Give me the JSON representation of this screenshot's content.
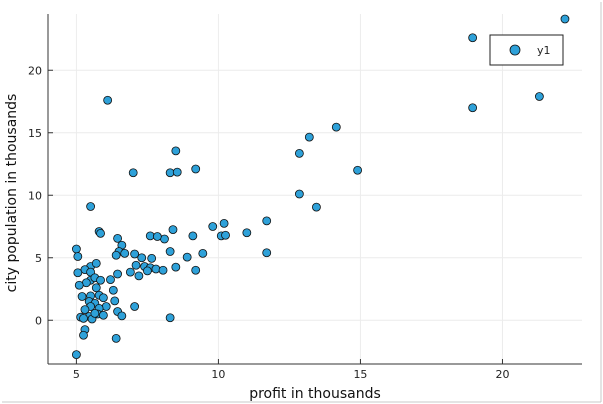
{
  "chart_data": {
    "type": "scatter",
    "xlabel": "profit in thousands",
    "ylabel": "city population in thousands",
    "xlim": [
      4.0,
      22.8
    ],
    "ylim": [
      -3.5,
      24.5
    ],
    "xticks": [
      5,
      10,
      15,
      20
    ],
    "yticks": [
      0,
      5,
      10,
      15,
      20
    ],
    "grid": true,
    "legend_position": "top-right",
    "series": [
      {
        "name": "y1",
        "color": "#2ea1d9",
        "points": [
          [
            22.2,
            24.1
          ],
          [
            18.95,
            22.6
          ],
          [
            20.3,
            21.0
          ],
          [
            18.95,
            17.0
          ],
          [
            21.3,
            17.9
          ],
          [
            6.1,
            17.6
          ],
          [
            14.15,
            15.45
          ],
          [
            13.2,
            14.65
          ],
          [
            12.85,
            13.35
          ],
          [
            8.5,
            13.55
          ],
          [
            7.0,
            11.8
          ],
          [
            8.3,
            11.8
          ],
          [
            8.55,
            11.85
          ],
          [
            9.2,
            12.1
          ],
          [
            14.9,
            12.0
          ],
          [
            12.85,
            10.1
          ],
          [
            13.45,
            9.05
          ],
          [
            5.5,
            9.1
          ],
          [
            11.7,
            7.95
          ],
          [
            10.2,
            7.75
          ],
          [
            11.0,
            7.0
          ],
          [
            9.8,
            7.5
          ],
          [
            10.1,
            6.75
          ],
          [
            10.25,
            6.8
          ],
          [
            8.4,
            7.25
          ],
          [
            8.1,
            6.5
          ],
          [
            7.6,
            6.75
          ],
          [
            7.85,
            6.7
          ],
          [
            5.8,
            7.1
          ],
          [
            5.85,
            6.95
          ],
          [
            6.45,
            6.55
          ],
          [
            6.6,
            6.0
          ],
          [
            8.3,
            5.5
          ],
          [
            9.1,
            6.75
          ],
          [
            9.45,
            5.35
          ],
          [
            8.9,
            5.05
          ],
          [
            8.5,
            4.25
          ],
          [
            9.2,
            4.0
          ],
          [
            7.05,
            5.3
          ],
          [
            7.3,
            5.0
          ],
          [
            7.65,
            4.95
          ],
          [
            7.1,
            4.4
          ],
          [
            7.4,
            4.3
          ],
          [
            7.6,
            4.2
          ],
          [
            7.8,
            4.1
          ],
          [
            8.05,
            4.0
          ],
          [
            7.5,
            3.95
          ],
          [
            7.2,
            3.55
          ],
          [
            6.9,
            3.85
          ],
          [
            6.45,
            3.7
          ],
          [
            6.5,
            5.5
          ],
          [
            6.4,
            5.2
          ],
          [
            6.7,
            5.35
          ],
          [
            5.0,
            5.7
          ],
          [
            5.05,
            5.1
          ],
          [
            5.5,
            4.3
          ],
          [
            5.7,
            4.55
          ],
          [
            5.3,
            4.05
          ],
          [
            5.5,
            3.85
          ],
          [
            5.05,
            3.8
          ],
          [
            5.5,
            3.2
          ],
          [
            5.65,
            3.4
          ],
          [
            5.85,
            3.2
          ],
          [
            6.2,
            3.25
          ],
          [
            5.35,
            3.0
          ],
          [
            5.1,
            2.8
          ],
          [
            5.7,
            2.6
          ],
          [
            6.3,
            2.4
          ],
          [
            5.8,
            2.0
          ],
          [
            5.5,
            1.95
          ],
          [
            5.2,
            1.9
          ],
          [
            5.95,
            1.8
          ],
          [
            5.45,
            1.5
          ],
          [
            5.65,
            1.35
          ],
          [
            6.05,
            1.1
          ],
          [
            6.35,
            1.55
          ],
          [
            5.8,
            0.95
          ],
          [
            5.5,
            1.1
          ],
          [
            5.3,
            0.85
          ],
          [
            5.75,
            0.5
          ],
          [
            5.95,
            0.4
          ],
          [
            5.45,
            0.3
          ],
          [
            5.15,
            0.25
          ],
          [
            5.25,
            0.15
          ],
          [
            5.55,
            0.1
          ],
          [
            5.65,
            0.55
          ],
          [
            6.45,
            0.7
          ],
          [
            6.6,
            0.35
          ],
          [
            7.05,
            1.1
          ],
          [
            8.3,
            0.2
          ],
          [
            5.3,
            -0.75
          ],
          [
            5.25,
            -1.2
          ],
          [
            6.4,
            -1.45
          ],
          [
            5.0,
            -2.75
          ],
          [
            11.7,
            5.4
          ]
        ]
      }
    ]
  }
}
